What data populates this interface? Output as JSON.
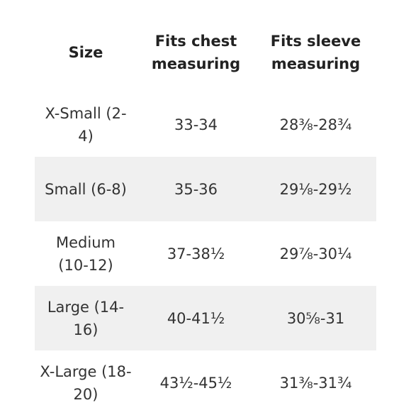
{
  "table": {
    "headers": [
      "Size",
      "Fits chest measuring",
      "Fits sleeve measuring"
    ],
    "rows": [
      {
        "size": "X-Small (2-4)",
        "chest": "33-34",
        "sleeve": "28⅜-28¾"
      },
      {
        "size": "Small (6-8)",
        "chest": "35-36",
        "sleeve": "29⅛-29½"
      },
      {
        "size": "Medium (10-12)",
        "chest": "37-38½",
        "sleeve": "29⅞-30¼"
      },
      {
        "size": "Large (14-16)",
        "chest": "40-41½",
        "sleeve": "30⅝-31"
      },
      {
        "size": "X-Large (18-20)",
        "chest": "43½-45½",
        "sleeve": "31⅜-31¾"
      }
    ],
    "row_shading_color": "#f0f0f0"
  }
}
